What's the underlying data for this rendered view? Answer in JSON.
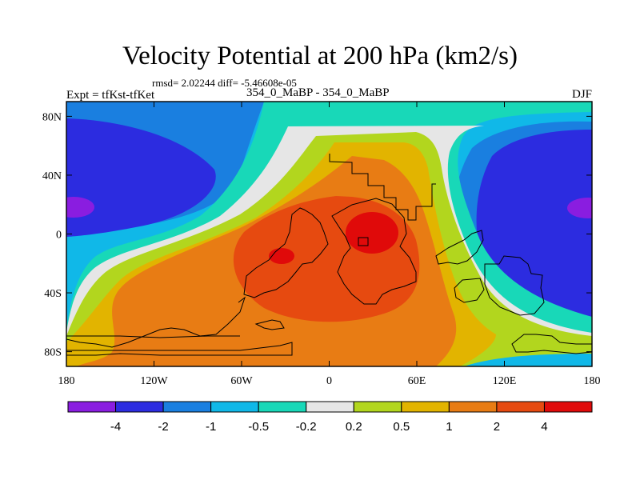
{
  "chart_data": {
    "type": "contour map",
    "title": "Velocity Potential at 200 hPa (km2/s)",
    "stats": "rmsd= 2.02244 diff= -5.46608e-05",
    "experiment": "Expt = tfKst-tfKet",
    "runs": "354_0_MaBP - 354_0_MaBP",
    "season": "DJF",
    "x_ticks": [
      {
        "value": -180,
        "label": "180"
      },
      {
        "value": -120,
        "label": "120W"
      },
      {
        "value": -60,
        "label": "60W"
      },
      {
        "value": 0,
        "label": "0"
      },
      {
        "value": 60,
        "label": "60E"
      },
      {
        "value": 120,
        "label": "120E"
      },
      {
        "value": 180,
        "label": "180"
      }
    ],
    "y_ticks": [
      {
        "value": 80,
        "label": "80N"
      },
      {
        "value": 40,
        "label": "40N"
      },
      {
        "value": 0,
        "label": "0"
      },
      {
        "value": -40,
        "label": "40S"
      },
      {
        "value": -80,
        "label": "80S"
      }
    ],
    "xlim": [
      -180,
      180
    ],
    "ylim": [
      -90,
      90
    ],
    "levels": [
      "-4",
      "-2",
      "-1",
      "-0.5",
      "-0.2",
      "0.2",
      "0.5",
      "1",
      "2",
      "4"
    ],
    "colors": [
      "#8a1de0",
      "#2c2ce0",
      "#1a7fe0",
      "#10b8e8",
      "#18d8b8",
      "#e6e6e6",
      "#b2d61e",
      "#e2b400",
      "#e87c14",
      "#e64a10",
      "#e00a0a"
    ]
  }
}
